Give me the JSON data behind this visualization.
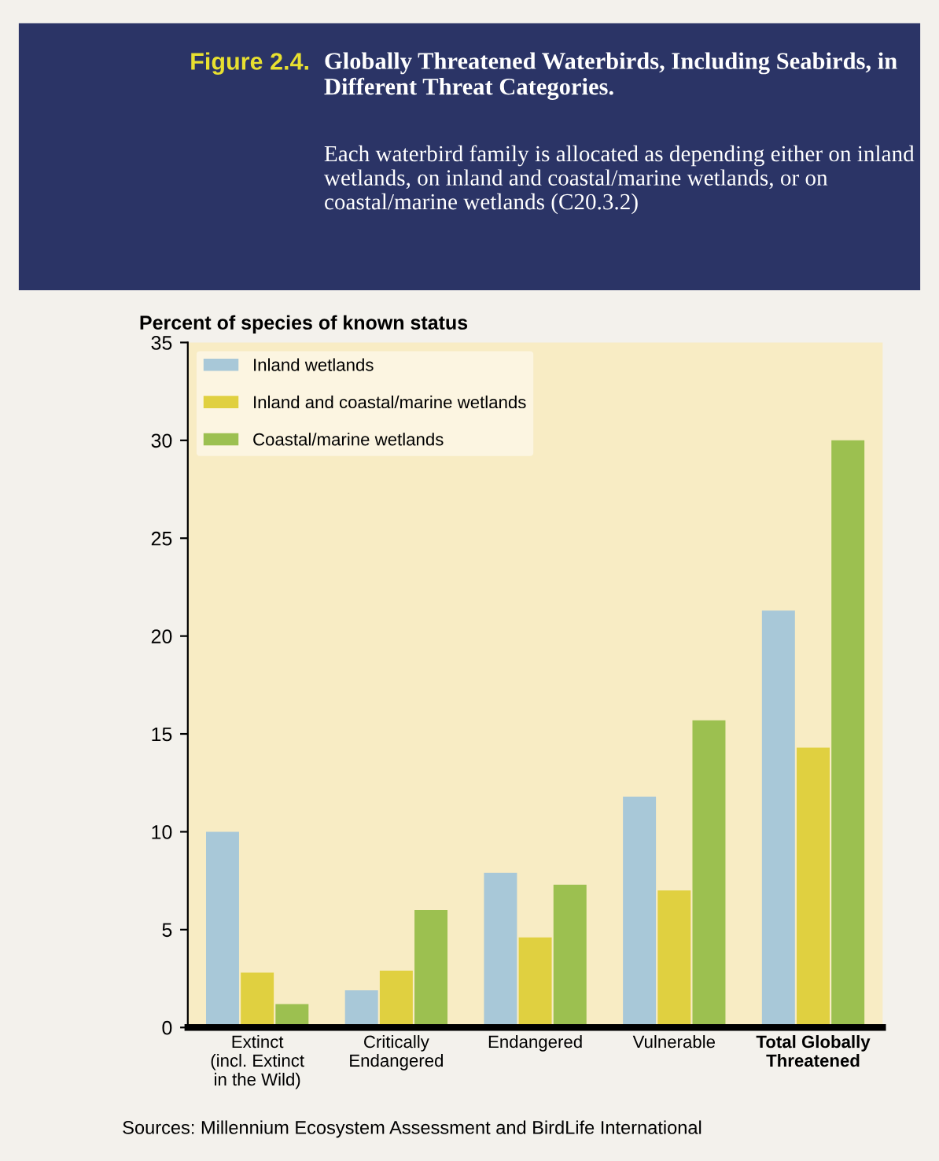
{
  "chart_data": {
    "type": "bar",
    "title": "Globally Threatened Waterbirds, Including Seabirds, in Different Threat Categories.",
    "subtitle": "Each waterbird family is allocated as depending either on inland wetlands, on inland and coastal/marine wetlands, or on coastal/marine wetlands (C20.3.2)",
    "ylabel": "Percent of species of known status",
    "categories": [
      "Extinct\n(incl. Extinct\nin the Wild)",
      "Critically\nEndangered",
      "Endangered",
      "Vulnerable",
      "Total Globally\nThreatened"
    ],
    "series": [
      {
        "name": "Inland wetlands",
        "color": "#a8c8d8",
        "values": [
          10,
          1.9,
          7.9,
          11.8,
          21.3
        ]
      },
      {
        "name": "Inland and coastal/marine wetlands",
        "color": "#e0d040",
        "values": [
          2.8,
          2.9,
          4.6,
          7.0,
          14.3
        ]
      },
      {
        "name": "Coastal/marine wetlands",
        "color": "#9cc050",
        "values": [
          1.2,
          6.0,
          7.3,
          15.7,
          30.0
        ]
      }
    ],
    "ylim": [
      0,
      35
    ],
    "yticks": [
      0,
      5,
      10,
      15,
      20,
      25,
      30,
      35
    ],
    "legend": "top left",
    "grid": false,
    "annotations": [
      "Figure 2.4.",
      "Sources: Millennium Ecosystem Assessment and BirdLife International"
    ]
  }
}
